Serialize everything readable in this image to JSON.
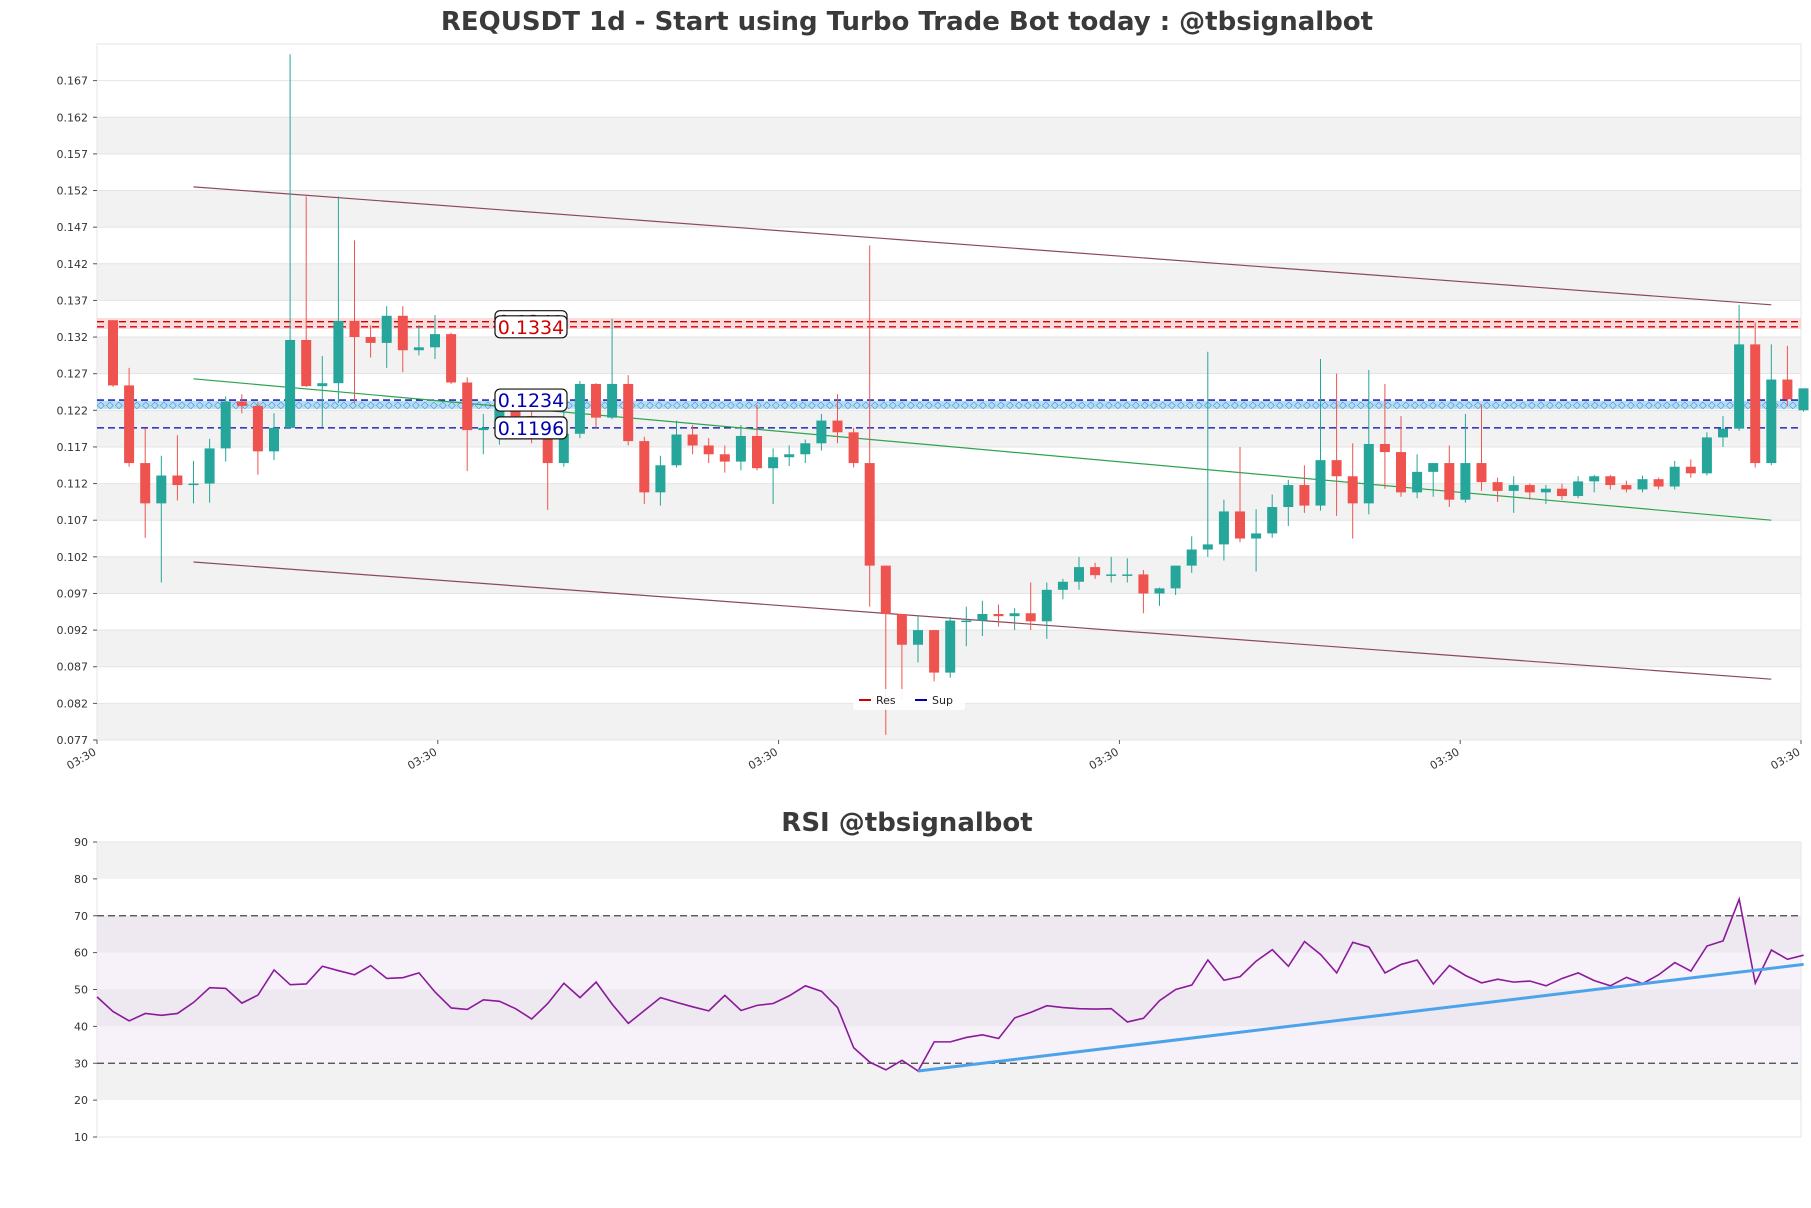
{
  "colors": {
    "up": "#26a69a",
    "down": "#ef5350",
    "resistance": "#d00000",
    "support": "#0000b0",
    "support_zone": "#5fb4e6",
    "channel": "#8b4a5a",
    "trend": "#2ea44f",
    "rsi_line": "#8b1a9b",
    "rsi_trend": "#4da3ea",
    "band": "#f2f2f2"
  },
  "chart_data": [
    {
      "type": "candlestick",
      "title": "REQUSDT 1d - Start using Turbo Trade Bot today : @tbsignalbot",
      "ylim": [
        0.077,
        0.172
      ],
      "y_ticks": [
        "0.077",
        "0.082",
        "0.087",
        "0.092",
        "0.097",
        "0.102",
        "0.107",
        "0.112",
        "0.117",
        "0.122",
        "0.127",
        "0.132",
        "0.137",
        "0.142",
        "0.147",
        "0.152",
        "0.157",
        "0.162",
        "0.167"
      ],
      "x_ticks": [
        "03:30",
        "03:30",
        "03:30",
        "03:30",
        "03:30",
        "03:30"
      ],
      "levels": [
        {
          "label": "0.1341",
          "value": 0.1341,
          "kind": "res"
        },
        {
          "label": "0.1334",
          "value": 0.1334,
          "kind": "res"
        },
        {
          "label": "0.1234",
          "value": 0.1234,
          "kind": "sup"
        },
        {
          "label": "0.1196",
          "value": 0.1196,
          "kind": "sup"
        }
      ],
      "legend": [
        "Res",
        "Sup"
      ],
      "legend_position": "bottom-center",
      "channel_upper": [
        [
          5,
          0.1525
        ],
        [
          103,
          0.1364
        ]
      ],
      "channel_lower": [
        [
          5,
          0.1013
        ],
        [
          103,
          0.0853
        ]
      ],
      "trend_line": [
        [
          5,
          0.1263
        ],
        [
          103,
          0.107
        ]
      ],
      "candles": [
        [
          0.1343,
          0.1343,
          0.1252,
          0.1254
        ],
        [
          0.1254,
          0.1278,
          0.1143,
          0.1148
        ],
        [
          0.1148,
          0.1195,
          0.1046,
          0.1093
        ],
        [
          0.1093,
          0.1158,
          0.0985,
          0.1131
        ],
        [
          0.1131,
          0.1186,
          0.1097,
          0.1118
        ],
        [
          0.1118,
          0.1151,
          0.1093,
          0.112
        ],
        [
          0.112,
          0.1181,
          0.1094,
          0.1168
        ],
        [
          0.1168,
          0.1239,
          0.115,
          0.1232
        ],
        [
          0.1232,
          0.1242,
          0.1216,
          0.1226
        ],
        [
          0.1226,
          0.1231,
          0.1132,
          0.1164
        ],
        [
          0.1164,
          0.1216,
          0.1152,
          0.1196
        ],
        [
          0.1196,
          0.1706,
          0.1196,
          0.1316
        ],
        [
          0.1316,
          0.1512,
          0.1252,
          0.1253
        ],
        [
          0.1253,
          0.1294,
          0.1197,
          0.1257
        ],
        [
          0.1257,
          0.1512,
          0.123,
          0.1342
        ],
        [
          0.1342,
          0.1452,
          0.123,
          0.132
        ],
        [
          0.132,
          0.1336,
          0.1292,
          0.1312
        ],
        [
          0.1312,
          0.1362,
          0.1278,
          0.1349
        ],
        [
          0.1349,
          0.1362,
          0.1272,
          0.1302
        ],
        [
          0.1302,
          0.1336,
          0.1295,
          0.1306
        ],
        [
          0.1306,
          0.135,
          0.129,
          0.1324
        ],
        [
          0.1324,
          0.1326,
          0.1256,
          0.1258
        ],
        [
          0.1258,
          0.1265,
          0.1137,
          0.1193
        ],
        [
          0.1193,
          0.1215,
          0.116,
          0.1196
        ],
        [
          0.1196,
          0.1236,
          0.1173,
          0.1222
        ],
        [
          0.1222,
          0.1232,
          0.119,
          0.1212
        ],
        [
          0.1212,
          0.1226,
          0.1175,
          0.119
        ],
        [
          0.119,
          0.12,
          0.1084,
          0.1148
        ],
        [
          0.1148,
          0.1248,
          0.1143,
          0.1188
        ],
        [
          0.1188,
          0.126,
          0.1182,
          0.1256
        ],
        [
          0.1256,
          0.1257,
          0.1196,
          0.121
        ],
        [
          0.121,
          0.1345,
          0.1208,
          0.1256
        ],
        [
          0.1256,
          0.1268,
          0.1172,
          0.1178
        ],
        [
          0.1178,
          0.1184,
          0.1092,
          0.1108
        ],
        [
          0.1108,
          0.1158,
          0.109,
          0.1145
        ],
        [
          0.1145,
          0.1206,
          0.1142,
          0.1187
        ],
        [
          0.1187,
          0.12,
          0.116,
          0.1172
        ],
        [
          0.1172,
          0.1182,
          0.1148,
          0.116
        ],
        [
          0.116,
          0.1172,
          0.1135,
          0.115
        ],
        [
          0.115,
          0.12,
          0.1138,
          0.1185
        ],
        [
          0.1185,
          0.1228,
          0.1138,
          0.1141
        ],
        [
          0.1141,
          0.1168,
          0.1092,
          0.1156
        ],
        [
          0.1156,
          0.1172,
          0.1144,
          0.116
        ],
        [
          0.116,
          0.118,
          0.1148,
          0.1175
        ],
        [
          0.1175,
          0.1215,
          0.1165,
          0.1206
        ],
        [
          0.1206,
          0.1242,
          0.1175,
          0.119
        ],
        [
          0.119,
          0.1196,
          0.1142,
          0.1148
        ],
        [
          0.1148,
          0.1445,
          0.0952,
          0.1008
        ],
        [
          0.1008,
          0.1008,
          0.0777,
          0.0942
        ],
        [
          0.0942,
          0.0942,
          0.0825,
          0.09
        ],
        [
          0.09,
          0.094,
          0.0876,
          0.092
        ],
        [
          0.092,
          0.092,
          0.085,
          0.0862
        ],
        [
          0.0862,
          0.0938,
          0.0855,
          0.0933
        ],
        [
          0.0933,
          0.0952,
          0.0898,
          0.0933
        ],
        [
          0.0933,
          0.096,
          0.0912,
          0.0942
        ],
        [
          0.0942,
          0.0955,
          0.0925,
          0.0939
        ],
        [
          0.0939,
          0.095,
          0.092,
          0.0943
        ],
        [
          0.0943,
          0.0985,
          0.092,
          0.0932
        ],
        [
          0.0932,
          0.0985,
          0.0908,
          0.0975
        ],
        [
          0.0975,
          0.099,
          0.0962,
          0.0986
        ],
        [
          0.0986,
          0.102,
          0.0975,
          0.1006
        ],
        [
          0.1006,
          0.1012,
          0.099,
          0.0995
        ],
        [
          0.0995,
          0.102,
          0.0985,
          0.0996
        ],
        [
          0.0996,
          0.1018,
          0.0985,
          0.0996
        ],
        [
          0.0996,
          0.1002,
          0.0943,
          0.097
        ],
        [
          0.097,
          0.0978,
          0.0953,
          0.0977
        ],
        [
          0.0977,
          0.1008,
          0.0968,
          0.1008
        ],
        [
          0.1008,
          0.1048,
          0.0998,
          0.103
        ],
        [
          0.103,
          0.13,
          0.102,
          0.1037
        ],
        [
          0.1037,
          0.1098,
          0.1015,
          0.1082
        ],
        [
          0.1082,
          0.117,
          0.104,
          0.1045
        ],
        [
          0.1045,
          0.1085,
          0.1,
          0.1052
        ],
        [
          0.1052,
          0.1105,
          0.1046,
          0.1088
        ],
        [
          0.1088,
          0.1125,
          0.1062,
          0.1118
        ],
        [
          0.1118,
          0.1145,
          0.108,
          0.109
        ],
        [
          0.109,
          0.129,
          0.1083,
          0.1152
        ],
        [
          0.1152,
          0.127,
          0.1076,
          0.113
        ],
        [
          0.113,
          0.1175,
          0.1045,
          0.1093
        ],
        [
          0.1093,
          0.1275,
          0.1078,
          0.1174
        ],
        [
          0.1174,
          0.1256,
          0.1113,
          0.1163
        ],
        [
          0.1163,
          0.1212,
          0.1102,
          0.1108
        ],
        [
          0.1108,
          0.116,
          0.11,
          0.1136
        ],
        [
          0.1136,
          0.114,
          0.1102,
          0.1148
        ],
        [
          0.1148,
          0.1172,
          0.1088,
          0.1098
        ],
        [
          0.1098,
          0.1215,
          0.1094,
          0.1148
        ],
        [
          0.1148,
          0.1228,
          0.111,
          0.1122
        ],
        [
          0.1122,
          0.1128,
          0.1095,
          0.111
        ],
        [
          0.111,
          0.113,
          0.108,
          0.1118
        ],
        [
          0.1118,
          0.112,
          0.1098,
          0.1108
        ],
        [
          0.1108,
          0.1118,
          0.1092,
          0.1113
        ],
        [
          0.1113,
          0.112,
          0.1098,
          0.1103
        ],
        [
          0.1103,
          0.113,
          0.11,
          0.1123
        ],
        [
          0.1123,
          0.1132,
          0.1108,
          0.113
        ],
        [
          0.113,
          0.1132,
          0.1112,
          0.1118
        ],
        [
          0.1118,
          0.1124,
          0.1108,
          0.1112
        ],
        [
          0.1112,
          0.1131,
          0.1108,
          0.1126
        ],
        [
          0.1126,
          0.1128,
          0.1112,
          0.1116
        ],
        [
          0.1116,
          0.1151,
          0.1112,
          0.1143
        ],
        [
          0.1143,
          0.1153,
          0.1128,
          0.1134
        ],
        [
          0.1134,
          0.119,
          0.1131,
          0.1183
        ],
        [
          0.1183,
          0.1212,
          0.117,
          0.1195
        ],
        [
          0.1195,
          0.1364,
          0.1192,
          0.131
        ],
        [
          0.131,
          0.134,
          0.1142,
          0.1148
        ],
        [
          0.1148,
          0.131,
          0.1145,
          0.1262
        ],
        [
          0.1262,
          0.1308,
          0.1226,
          0.1235
        ],
        [
          0.122,
          0.125,
          0.1218,
          0.125
        ]
      ]
    },
    {
      "type": "line",
      "title": "RSI @tbsignalbot",
      "ylim": [
        10,
        90
      ],
      "y_ticks": [
        "10",
        "20",
        "30",
        "40",
        "50",
        "60",
        "70",
        "80",
        "90"
      ],
      "overbought": 70,
      "oversold": 30,
      "values": [
        48,
        44,
        41.5,
        43.5,
        43,
        43.5,
        46.5,
        50.5,
        50.3,
        46.3,
        48.5,
        55.3,
        51.3,
        51.5,
        56.3,
        55.1,
        54,
        56.5,
        53,
        53.2,
        54.5,
        49.3,
        45,
        44.6,
        47.2,
        46.8,
        44.8,
        42,
        46.2,
        51.7,
        47.8,
        52,
        46,
        40.8,
        44.3,
        47.8,
        46.5,
        45.3,
        44.2,
        48.4,
        44.3,
        45.7,
        46.2,
        48.3,
        51,
        49.5,
        45.1,
        34.2,
        30.3,
        28.2,
        30.8,
        27.9,
        35.8,
        35.8,
        37,
        37.7,
        36.7,
        42.3,
        43.8,
        45.6,
        45.1,
        44.8,
        44.7,
        44.8,
        41.2,
        42.2,
        47,
        50,
        51.2,
        58,
        52.5,
        53.5,
        57.7,
        60.8,
        56.3,
        63,
        59.5,
        54.5,
        62.8,
        61.5,
        54.5,
        56.8,
        58,
        51.5,
        56.5,
        53.8,
        51.8,
        52.8,
        52,
        52.3,
        51,
        53,
        54.5,
        52.4,
        51,
        53.3,
        51.6,
        54,
        57.3,
        55,
        61.8,
        63.2,
        74.5,
        51.7,
        60.7,
        58.2,
        59.3
      ],
      "trend_line": [
        [
          51,
          27.9
        ],
        [
          106,
          56.8
        ]
      ]
    }
  ]
}
